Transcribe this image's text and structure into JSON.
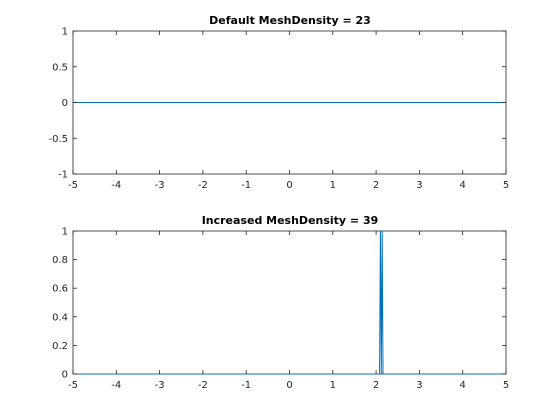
{
  "chart_data": [
    {
      "type": "line",
      "title": "Default MeshDensity = 23",
      "xlabel": "",
      "ylabel": "",
      "xlim": [
        -5,
        5
      ],
      "ylim": [
        -1,
        1
      ],
      "xticks": [
        -5,
        -4,
        -3,
        -2,
        -1,
        0,
        1,
        2,
        3,
        4,
        5
      ],
      "xtick_labels": [
        "-5",
        "-4",
        "-3",
        "-2",
        "-1",
        "0",
        "1",
        "2",
        "3",
        "4",
        "5"
      ],
      "yticks": [
        -1,
        -0.5,
        0,
        0.5,
        1
      ],
      "ytick_labels": [
        "-1",
        "-0.5",
        "0",
        "0.5",
        "1"
      ],
      "grid": false,
      "series": [
        {
          "color": "#0072bd",
          "x": [
            -5,
            5
          ],
          "y": [
            0,
            0
          ]
        }
      ]
    },
    {
      "type": "line",
      "title": "Increased MeshDensity = 39",
      "xlabel": "",
      "ylabel": "",
      "xlim": [
        -5,
        5
      ],
      "ylim": [
        0,
        1
      ],
      "xticks": [
        -5,
        -4,
        -3,
        -2,
        -1,
        0,
        1,
        2,
        3,
        4,
        5
      ],
      "xtick_labels": [
        "-5",
        "-4",
        "-3",
        "-2",
        "-1",
        "0",
        "1",
        "2",
        "3",
        "4",
        "5"
      ],
      "yticks": [
        0,
        0.2,
        0.4,
        0.6,
        0.8,
        1
      ],
      "ytick_labels": [
        "0",
        "0.2",
        "0.4",
        "0.6",
        "0.8",
        "1"
      ],
      "grid": false,
      "series": [
        {
          "color": "#0072bd",
          "x": [
            -5,
            2.08,
            2.1,
            2.12,
            2.14,
            2.16,
            5
          ],
          "y": [
            0,
            0,
            1,
            0,
            1,
            0,
            0
          ]
        }
      ]
    }
  ]
}
